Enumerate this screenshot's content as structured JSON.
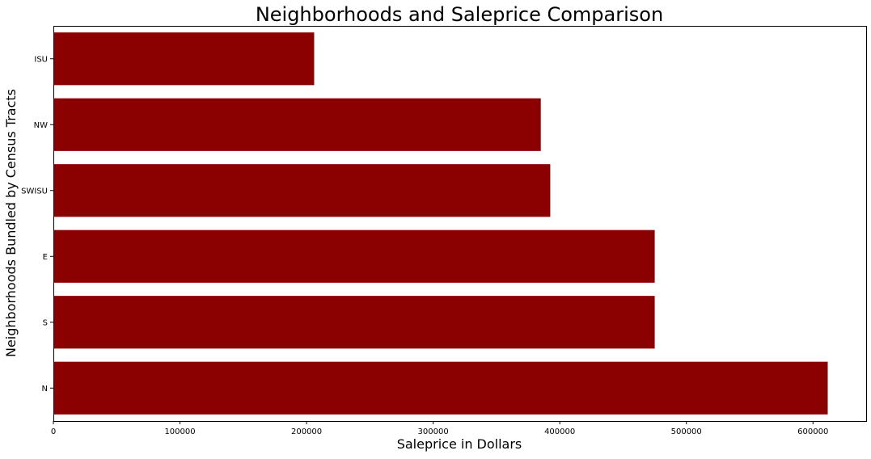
{
  "chart_data": {
    "type": "bar",
    "orientation": "horizontal",
    "title": "Neighborhoods and Saleprice Comparison",
    "xlabel": "Saleprice in Dollars",
    "ylabel": "Neighborhoods Bundled by Census Tracts",
    "categories": [
      "ISU",
      "NW",
      "SWISU",
      "E",
      "S",
      "N"
    ],
    "values": [
      206000,
      385000,
      392500,
      475000,
      475000,
      611657
    ],
    "xlim": [
      0,
      642000
    ],
    "xticks": [
      0,
      100000,
      200000,
      300000,
      400000,
      500000,
      600000
    ],
    "xtick_labels": [
      "0",
      "100000",
      "200000",
      "300000",
      "400000",
      "500000",
      "600000"
    ],
    "bar_color": "#8b0000",
    "grid": false,
    "legend": "none"
  }
}
